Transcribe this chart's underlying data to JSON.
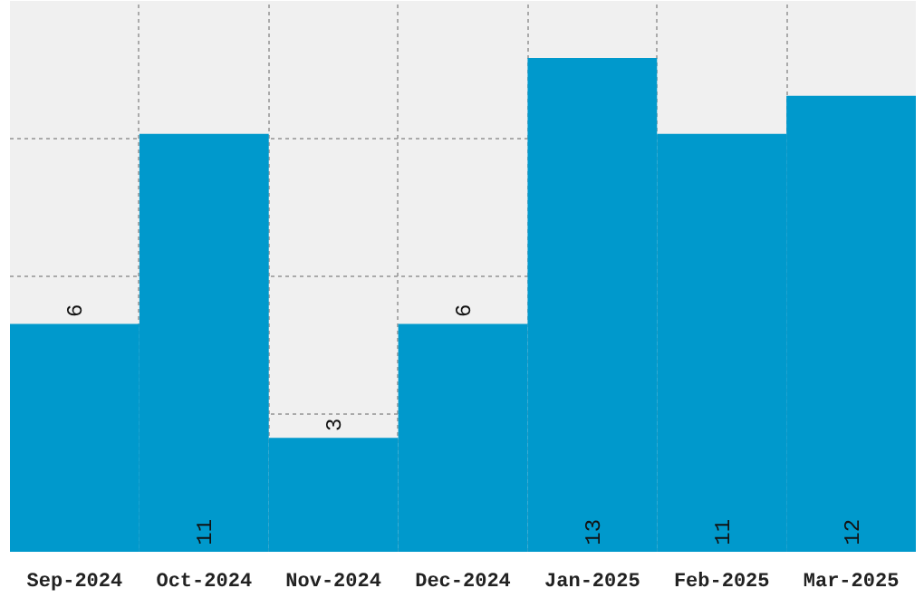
{
  "chart_data": {
    "type": "bar",
    "categories": [
      "Sep-2024",
      "Oct-2024",
      "Nov-2024",
      "Dec-2024",
      "Jan-2025",
      "Feb-2025",
      "Mar-2025"
    ],
    "values": [
      6,
      11,
      3,
      6,
      13,
      11,
      12
    ],
    "color": "#0099cc",
    "ylim": [
      0,
      14.5
    ],
    "yticks": [
      {
        "value": 3.625,
        "label": null
      },
      {
        "value": 7.25,
        "label": null
      },
      {
        "value": 10.875,
        "label": null
      }
    ],
    "tick_labels": "x",
    "grid": true,
    "data_labels": true
  }
}
